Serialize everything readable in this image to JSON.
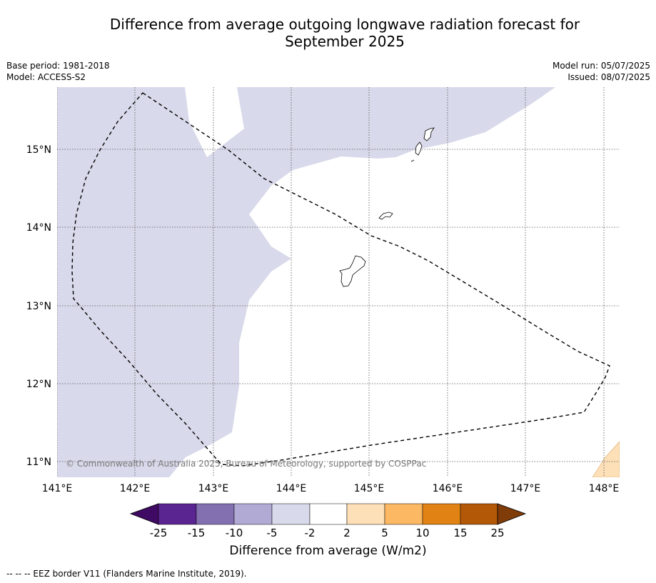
{
  "header": {
    "title_line1": "Difference from average outgoing longwave radiation forecast for",
    "title_line2": "September 2025",
    "base_period": "Base period: 1981-2018",
    "model": "Model: ACCESS-S2",
    "model_run": "Model run: 05/07/2025",
    "issued": "Issued: 08/07/2025"
  },
  "map": {
    "latitude_labels": [
      "15°N",
      "14°N",
      "13°N",
      "12°N",
      "11°N"
    ],
    "longitude_labels": [
      "141°E",
      "142°E",
      "143°E",
      "144°E",
      "145°E",
      "146°E",
      "147°E",
      "148°E"
    ],
    "copyright": "© Commonwealth of Australia 2025, Bureau of Meteorology, supported by COSPPac",
    "regions": [
      {
        "category": "-5 to -2",
        "color": "#d8d9ea"
      },
      {
        "category": "-2 to 2",
        "color": "#ffffff"
      },
      {
        "category": "2 to 5",
        "color": "#fde0b7"
      }
    ]
  },
  "colorbar": {
    "title": "Difference from average (W/m2)",
    "tick_labels": [
      "-25",
      "-15",
      "-10",
      "-5",
      "-2",
      "2",
      "5",
      "10",
      "15",
      "25"
    ],
    "colors": [
      "#3f0a63",
      "#5a2590",
      "#8270b0",
      "#b1aad4",
      "#d8d9ea",
      "#ffffff",
      "#fde0b7",
      "#fdb863",
      "#e08214",
      "#b35806",
      "#7f3b08"
    ]
  },
  "footer": {
    "legend": "--  --  -- EEZ border V11 (Flanders Marine Institute, 2019)."
  }
}
